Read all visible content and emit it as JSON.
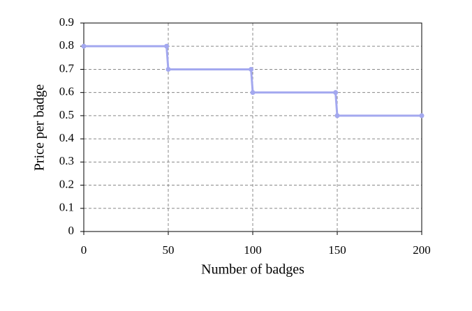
{
  "chart_data": {
    "type": "line",
    "x_label": "Number of badges",
    "y_label": "Price per badge",
    "x": [
      0,
      49,
      50,
      99,
      100,
      149,
      150,
      200
    ],
    "values": [
      0.8,
      0.8,
      0.7,
      0.7,
      0.6,
      0.6,
      0.5,
      0.5
    ],
    "color": "#a3a8ef",
    "xlim": [
      0,
      200
    ],
    "xticks": [
      0,
      50,
      100,
      150,
      200
    ],
    "ylim": [
      0,
      0.9
    ],
    "yticks": [
      0,
      0.1,
      0.2,
      0.3,
      0.4,
      0.5,
      0.6,
      0.7,
      0.8,
      0.9
    ],
    "grid": true
  }
}
